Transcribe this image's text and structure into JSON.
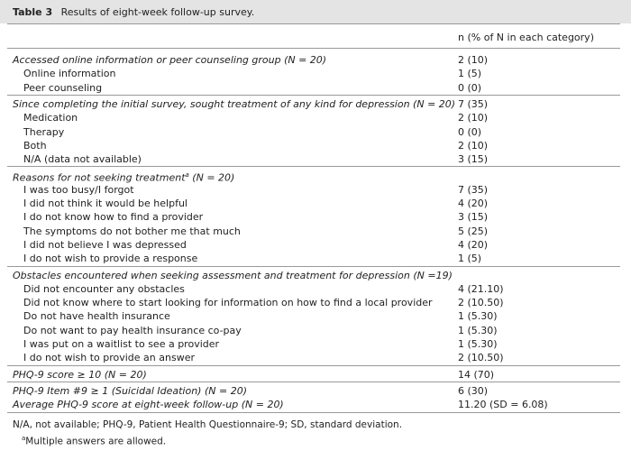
{
  "table": {
    "label": "Table 3",
    "title": "Results of eight-week follow-up survey.",
    "column_header": "n (% of N in each category)",
    "groups": [
      {
        "entries": [
          {
            "label": "Accessed online information or peer counseling group (N = 20)",
            "value": "2 (10)",
            "items": [
              {
                "label": "Online information",
                "value": "1 (5)"
              },
              {
                "label": "Peer counseling",
                "value": "0 (0)"
              }
            ]
          }
        ]
      },
      {
        "entries": [
          {
            "label": "Since completing the initial survey, sought treatment of any kind for depression (N = 20)",
            "value": "7 (35)",
            "items": [
              {
                "label": "Medication",
                "value": "2 (10)"
              },
              {
                "label": "Therapy",
                "value": "0 (0)"
              },
              {
                "label": "Both",
                "value": "2 (10)"
              },
              {
                "label": "N/A (data not available)",
                "value": "3 (15)"
              }
            ]
          }
        ]
      },
      {
        "entries": [
          {
            "label": "Reasons for not seeking treatment",
            "marker": "a",
            "suffix": " (N = 20)",
            "items": [
              {
                "label": "I was too busy/I forgot",
                "value": "7 (35)"
              },
              {
                "label": "I did not think it would be helpful",
                "value": "4 (20)"
              },
              {
                "label": "I do not know how to find a provider",
                "value": "3 (15)"
              },
              {
                "label": "The symptoms do not bother me that much",
                "value": "5 (25)"
              },
              {
                "label": "I did not believe I was depressed",
                "value": "4 (20)"
              },
              {
                "label": "I do not wish to provide a response",
                "value": "1 (5)"
              }
            ]
          }
        ]
      },
      {
        "entries": [
          {
            "label": "Obstacles encountered when seeking assessment and treatment for depression (N =19)",
            "items": [
              {
                "label": "Did not encounter any obstacles",
                "value": "4 (21.10)"
              },
              {
                "label": "Did not know where to start looking for information on how to find a local provider",
                "value": "2 (10.50)"
              },
              {
                "label": "Do not have health insurance",
                "value": "1 (5.30)"
              },
              {
                "label": "Do not want to pay health insurance co-pay",
                "value": "1 (5.30)"
              },
              {
                "label": "I was put on a waitlist to see a provider",
                "value": "1 (5.30)"
              },
              {
                "label": "I do not wish to provide an answer",
                "value": "2 (10.50)"
              }
            ]
          }
        ]
      },
      {
        "entries": [
          {
            "label": "PHQ-9 score ≥ 10 (N = 20)",
            "value": "14 (70)"
          }
        ]
      },
      {
        "entries": [
          {
            "label": "PHQ-9 Item #9 ≥ 1 (Suicidal Ideation) (N = 20)",
            "value": "6 (30)"
          },
          {
            "label": "Average PHQ-9 score at eight-week follow-up (N = 20)",
            "value": "11.20 (SD = 6.08)"
          }
        ]
      }
    ],
    "footnotes": [
      {
        "text": "N/A, not available; PHQ-9, Patient Health Questionnaire-9; SD, standard deviation."
      },
      {
        "marker": "a",
        "text": "Multiple answers are allowed."
      }
    ]
  }
}
